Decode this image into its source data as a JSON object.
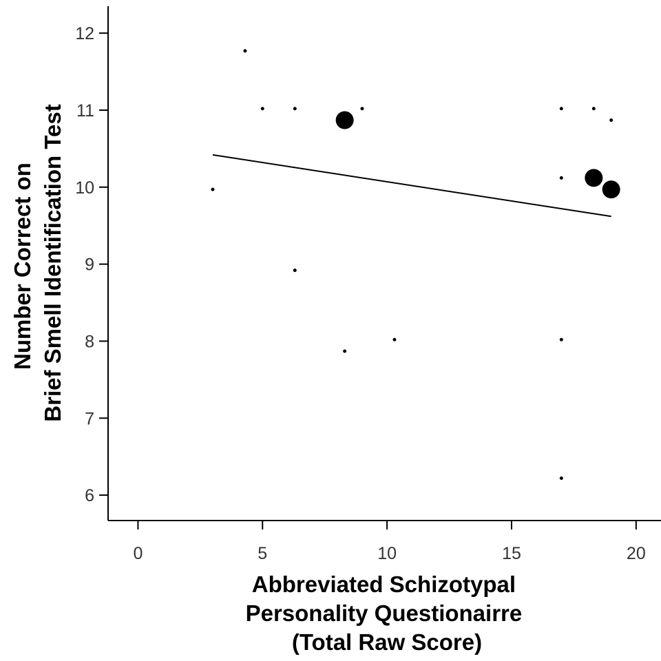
{
  "chart_data": {
    "type": "scatter",
    "title": "",
    "xlabel": [
      "Abbreviated Schizotypal",
      "Personality Questionairre",
      "(Total Raw Score)"
    ],
    "ylabel": [
      "Number Correct on",
      "Brief Smell Identification Test"
    ],
    "xlim": [
      -1.2,
      21
    ],
    "ylim": [
      5.67,
      12.35
    ],
    "xticks": [
      0,
      5,
      10,
      15,
      20
    ],
    "yticks": [
      6,
      7,
      8,
      9,
      10,
      11,
      12
    ],
    "xtick_labels": [
      "0",
      "5",
      "10",
      "15",
      "20"
    ],
    "ytick_labels": [
      "6",
      "7",
      "8",
      "9",
      "10",
      "11",
      "12"
    ],
    "grid": false,
    "legend": "none",
    "points": [
      {
        "x": 3.0,
        "y": 9.97,
        "size": "small"
      },
      {
        "x": 4.3,
        "y": 11.77,
        "size": "small"
      },
      {
        "x": 5.0,
        "y": 11.02,
        "size": "small"
      },
      {
        "x": 6.3,
        "y": 11.02,
        "size": "small"
      },
      {
        "x": 6.3,
        "y": 8.92,
        "size": "small"
      },
      {
        "x": 8.3,
        "y": 10.87,
        "size": "large"
      },
      {
        "x": 8.3,
        "y": 7.87,
        "size": "small"
      },
      {
        "x": 9.0,
        "y": 11.02,
        "size": "small"
      },
      {
        "x": 10.3,
        "y": 8.02,
        "size": "small"
      },
      {
        "x": 17.0,
        "y": 11.02,
        "size": "small"
      },
      {
        "x": 17.0,
        "y": 10.12,
        "size": "small"
      },
      {
        "x": 17.0,
        "y": 8.02,
        "size": "small"
      },
      {
        "x": 17.0,
        "y": 6.22,
        "size": "small"
      },
      {
        "x": 18.3,
        "y": 11.02,
        "size": "small"
      },
      {
        "x": 18.3,
        "y": 10.12,
        "size": "large"
      },
      {
        "x": 19.0,
        "y": 10.87,
        "size": "small"
      },
      {
        "x": 19.0,
        "y": 9.97,
        "size": "large"
      }
    ],
    "fit_line": {
      "x": [
        3.0,
        19.0
      ],
      "y": [
        10.42,
        9.62
      ]
    },
    "colors": {
      "points": "#000000",
      "line": "#000000",
      "axis": "#000000"
    }
  }
}
